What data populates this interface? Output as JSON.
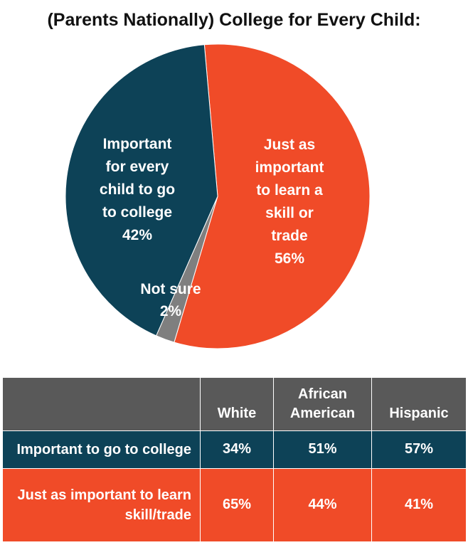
{
  "title": "(Parents Nationally) College for Every Child:",
  "chart_data": {
    "type": "pie",
    "slices": [
      {
        "label_lines": [
          "Just as",
          "important",
          "to learn a",
          "skill or",
          "trade",
          "56%"
        ],
        "value": 56,
        "color": "#f04b28"
      },
      {
        "label_lines": [
          "Not sure",
          "2%"
        ],
        "value": 2,
        "color": "#7f7f7f"
      },
      {
        "label_lines": [
          "Important",
          "for every",
          "child to go",
          "to college",
          "42%"
        ],
        "value": 42,
        "color": "#0d4257"
      }
    ]
  },
  "table": {
    "columns": [
      "",
      "White",
      "African American",
      "Hispanic"
    ],
    "rows": [
      {
        "label": "Important to go to college",
        "values": [
          "34%",
          "51%",
          "57%"
        ]
      },
      {
        "label": "Just as important to learn skill/trade",
        "values": [
          "65%",
          "44%",
          "41%"
        ]
      }
    ]
  }
}
